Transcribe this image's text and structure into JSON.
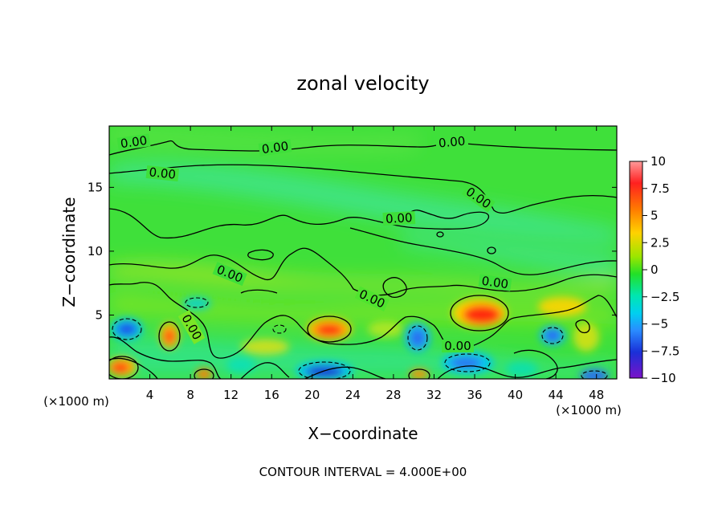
{
  "chart_data": {
    "type": "heatmap",
    "title": "zonal velocity",
    "xlabel": "X−coordinate",
    "ylabel": "Z−coordinate",
    "x_unit_left": "(×1000 m)",
    "x_unit_right": "(×1000 m)",
    "footer": "CONTOUR INTERVAL = 4.000E+00",
    "x_ticks": [
      "4",
      "8",
      "12",
      "16",
      "20",
      "24",
      "28",
      "32",
      "36",
      "40",
      "44",
      "48"
    ],
    "y_ticks": [
      "5",
      "10",
      "15"
    ],
    "xlim": [
      0,
      50
    ],
    "ylim": [
      0,
      19.8
    ],
    "colorbar": {
      "ticks": [
        "10",
        "7.5",
        "5",
        "2.5",
        "0",
        "−2.5",
        "−5",
        "−7.5",
        "−10"
      ],
      "range": [
        -10,
        10
      ],
      "colors": [
        "#ff8080",
        "#ff1a1a",
        "#ff7a00",
        "#ffd200",
        "#7ee600",
        "#00e640",
        "#00e6c8",
        "#33a0ff",
        "#1a40e6",
        "#1a1ab4",
        "#8a1ac8"
      ]
    },
    "contour_labels": [
      "0.00",
      "0.00",
      "0.00",
      "0.00",
      "0.00",
      "0.00",
      "0.00",
      "0.00",
      "0.00",
      "0.00"
    ],
    "features": [
      {
        "x": 1.5,
        "z": 0.8,
        "value": 7
      },
      {
        "x": 6,
        "z": 3.4,
        "value": 6
      },
      {
        "x": 9.5,
        "z": 0.3,
        "value": 5
      },
      {
        "x": 21,
        "z": 3.9,
        "value": 8
      },
      {
        "x": 36,
        "z": 5.2,
        "value": 9
      },
      {
        "x": 30,
        "z": 0.4,
        "value": 5
      },
      {
        "x": 44,
        "z": 4.8,
        "value": 4
      },
      {
        "x": 2,
        "z": 3.9,
        "value": -6
      },
      {
        "x": 20.5,
        "z": 0.6,
        "value": -7
      },
      {
        "x": 30.5,
        "z": 3.2,
        "value": -5
      },
      {
        "x": 35,
        "z": 1.4,
        "value": -6
      },
      {
        "x": 43.5,
        "z": 3.7,
        "value": -5
      },
      {
        "x": 47,
        "z": 0.3,
        "value": -6
      }
    ]
  }
}
